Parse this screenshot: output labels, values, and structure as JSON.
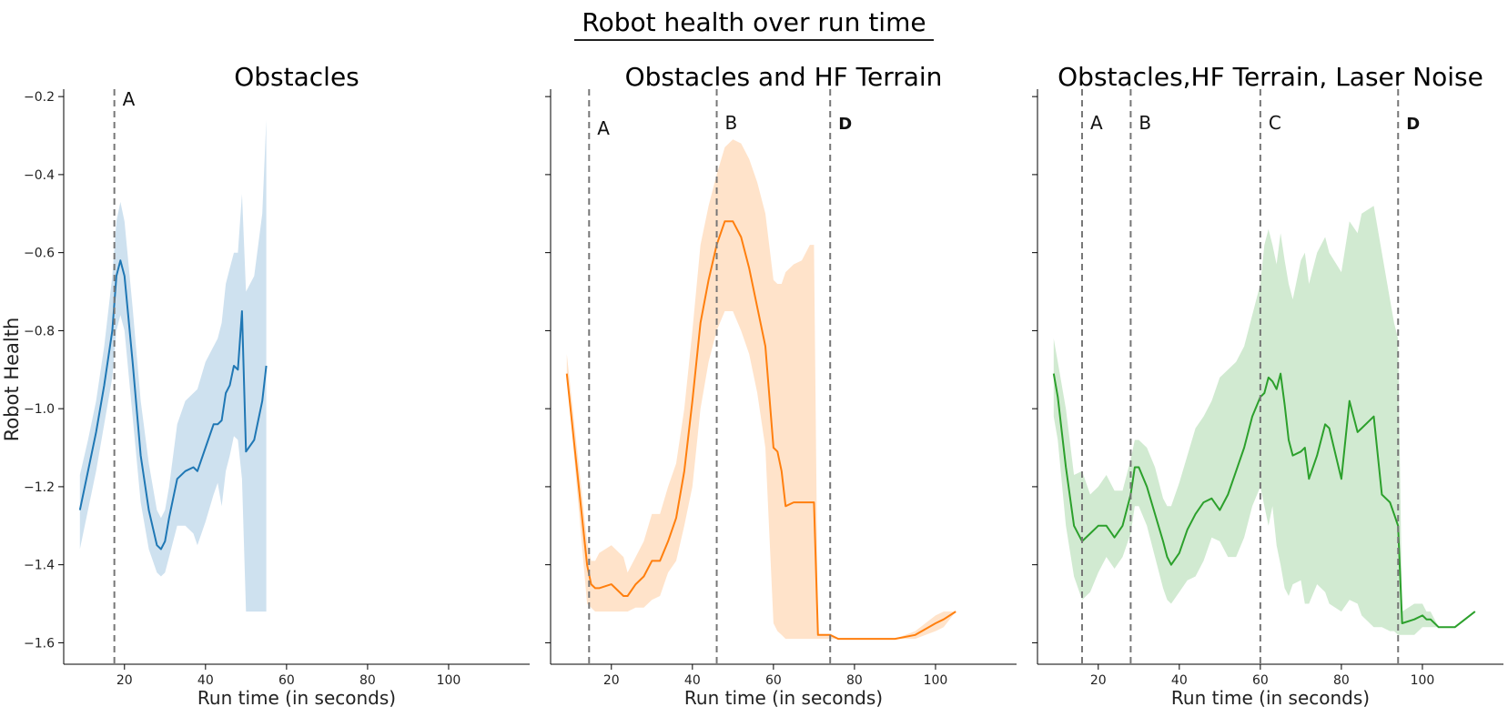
{
  "figure_title": "Robot health over run time",
  "colors": {
    "blue": "#1f77b4",
    "orange": "#ff7f0e",
    "green": "#2ca02c",
    "vline": "#777777"
  },
  "chart_data": [
    {
      "type": "line",
      "title": "Obstacles",
      "xlabel": "Run time (in seconds)",
      "ylabel": "Robot Health",
      "xlim": [
        5,
        120
      ],
      "ylim": [
        -1.655,
        -0.195
      ],
      "xticks": [
        20,
        40,
        60,
        80,
        100
      ],
      "yticks": [
        -1.6,
        -1.4,
        -1.2,
        -1.0,
        -0.8,
        -0.6,
        -0.4,
        -0.2
      ],
      "grid": false,
      "series": [
        {
          "color": "#1f77b4",
          "x": [
            9,
            11,
            13,
            15,
            17,
            18,
            19,
            20,
            22,
            24,
            26,
            28,
            29,
            30,
            31,
            33,
            35,
            37,
            38,
            40,
            42,
            43,
            44,
            45,
            46,
            47,
            48,
            49,
            50,
            52,
            54,
            55
          ],
          "y": [
            -1.26,
            -1.16,
            -1.06,
            -0.94,
            -0.8,
            -0.66,
            -0.62,
            -0.66,
            -0.88,
            -1.12,
            -1.26,
            -1.35,
            -1.36,
            -1.34,
            -1.28,
            -1.18,
            -1.16,
            -1.15,
            -1.16,
            -1.1,
            -1.04,
            -1.04,
            -1.03,
            -0.96,
            -0.94,
            -0.89,
            -0.9,
            -0.75,
            -1.11,
            -1.08,
            -0.98,
            -0.89
          ],
          "lower": [
            -1.36,
            -1.26,
            -1.16,
            -1.04,
            -0.92,
            -0.8,
            -0.76,
            -0.8,
            -1.02,
            -1.24,
            -1.36,
            -1.42,
            -1.43,
            -1.42,
            -1.38,
            -1.3,
            -1.3,
            -1.32,
            -1.35,
            -1.29,
            -1.22,
            -1.19,
            -1.25,
            -1.16,
            -1.12,
            -1.07,
            -1.08,
            -1.18,
            -1.52,
            -1.52,
            -1.52,
            -1.52
          ],
          "upper": [
            -1.17,
            -1.08,
            -0.98,
            -0.84,
            -0.66,
            -0.52,
            -0.47,
            -0.52,
            -0.74,
            -0.98,
            -1.14,
            -1.26,
            -1.28,
            -1.26,
            -1.2,
            -1.04,
            -0.98,
            -0.96,
            -0.95,
            -0.88,
            -0.84,
            -0.82,
            -0.78,
            -0.68,
            -0.64,
            -0.6,
            -0.6,
            -0.45,
            -0.7,
            -0.66,
            -0.5,
            -0.26
          ]
        }
      ],
      "vlines": [
        {
          "x": 17.5,
          "label": "A"
        }
      ]
    },
    {
      "type": "line",
      "title": "Obstacles and HF Terrain",
      "xlabel": "Run time (in seconds)",
      "xlim": [
        5,
        120
      ],
      "ylim": [
        -1.655,
        -0.195
      ],
      "xticks": [
        20,
        40,
        60,
        80,
        100
      ],
      "yticks": [
        -1.6,
        -1.4,
        -1.2,
        -1.0,
        -0.8,
        -0.6,
        -0.4,
        -0.2
      ],
      "grid": false,
      "series": [
        {
          "color": "#ff7f0e",
          "x": [
            9,
            14,
            15,
            16,
            17,
            20,
            23,
            24,
            26,
            28,
            30,
            32,
            34,
            36,
            38,
            40,
            42,
            44,
            46,
            48,
            50,
            52,
            54,
            56,
            58,
            60,
            61,
            62,
            63,
            65,
            67,
            69,
            70,
            71,
            74,
            76,
            80,
            90,
            95,
            100,
            102,
            105
          ],
          "y": [
            -0.91,
            -1.4,
            -1.45,
            -1.46,
            -1.46,
            -1.45,
            -1.48,
            -1.48,
            -1.45,
            -1.43,
            -1.39,
            -1.39,
            -1.34,
            -1.28,
            -1.16,
            -0.98,
            -0.78,
            -0.67,
            -0.58,
            -0.52,
            -0.52,
            -0.56,
            -0.64,
            -0.74,
            -0.84,
            -1.1,
            -1.11,
            -1.16,
            -1.25,
            -1.24,
            -1.24,
            -1.24,
            -1.24,
            -1.58,
            -1.58,
            -1.59,
            -1.59,
            -1.59,
            -1.58,
            -1.55,
            -1.54,
            -1.52
          ],
          "lower": [
            -0.91,
            -1.5,
            -1.51,
            -1.52,
            -1.52,
            -1.52,
            -1.52,
            -1.52,
            -1.51,
            -1.51,
            -1.49,
            -1.48,
            -1.42,
            -1.39,
            -1.3,
            -1.2,
            -1.0,
            -0.88,
            -0.8,
            -0.75,
            -0.75,
            -0.8,
            -0.86,
            -0.96,
            -1.1,
            -1.55,
            -1.57,
            -1.58,
            -1.59,
            -1.59,
            -1.59,
            -1.59,
            -1.59,
            -1.59,
            -1.59,
            -1.59,
            -1.59,
            -1.59,
            -1.59,
            -1.57,
            -1.56,
            -1.52
          ],
          "upper": [
            -0.86,
            -1.34,
            -1.39,
            -1.39,
            -1.37,
            -1.35,
            -1.38,
            -1.42,
            -1.38,
            -1.34,
            -1.27,
            -1.27,
            -1.2,
            -1.14,
            -1.0,
            -0.8,
            -0.58,
            -0.48,
            -0.4,
            -0.33,
            -0.31,
            -0.32,
            -0.36,
            -0.42,
            -0.5,
            -0.67,
            -0.68,
            -0.68,
            -0.65,
            -0.63,
            -0.62,
            -0.58,
            -0.58,
            -1.58,
            -1.58,
            -1.59,
            -1.59,
            -1.59,
            -1.57,
            -1.53,
            -1.52,
            -1.52
          ]
        }
      ],
      "vlines": [
        {
          "x": 14.5,
          "label": "A"
        },
        {
          "x": 46,
          "label": "B"
        },
        {
          "x": 74,
          "label": "D"
        }
      ]
    },
    {
      "type": "line",
      "title": "Obstacles,HF Terrain, Laser Noise",
      "xlabel": "Run time (in seconds)",
      "xlim": [
        5,
        120
      ],
      "ylim": [
        -1.655,
        -0.195
      ],
      "xticks": [
        20,
        40,
        60,
        80,
        100
      ],
      "yticks": [
        -1.6,
        -1.4,
        -1.2,
        -1.0,
        -0.8,
        -0.6,
        -0.4,
        -0.2
      ],
      "grid": false,
      "series": [
        {
          "color": "#2ca02c",
          "x": [
            9,
            10,
            12,
            14,
            16,
            18,
            20,
            22,
            24,
            26,
            28,
            29,
            30,
            32,
            34,
            36,
            37,
            38,
            40,
            42,
            44,
            46,
            48,
            50,
            52,
            54,
            56,
            58,
            60,
            61,
            62,
            63,
            64,
            65,
            66,
            67,
            68,
            70,
            71,
            72,
            74,
            76,
            77,
            80,
            82,
            84,
            85,
            88,
            90,
            92,
            93,
            94,
            95,
            98,
            100,
            101,
            102,
            104,
            108,
            113
          ],
          "y": [
            -0.91,
            -0.97,
            -1.15,
            -1.3,
            -1.34,
            -1.32,
            -1.3,
            -1.3,
            -1.33,
            -1.3,
            -1.22,
            -1.15,
            -1.15,
            -1.2,
            -1.27,
            -1.34,
            -1.38,
            -1.4,
            -1.37,
            -1.31,
            -1.27,
            -1.24,
            -1.23,
            -1.26,
            -1.22,
            -1.16,
            -1.1,
            -1.02,
            -0.97,
            -0.96,
            -0.92,
            -0.93,
            -0.95,
            -0.91,
            -0.99,
            -1.08,
            -1.12,
            -1.11,
            -1.1,
            -1.18,
            -1.12,
            -1.04,
            -1.05,
            -1.18,
            -0.98,
            -1.06,
            -1.05,
            -1.02,
            -1.22,
            -1.24,
            -1.27,
            -1.3,
            -1.55,
            -1.54,
            -1.53,
            -1.54,
            -1.54,
            -1.56,
            -1.56,
            -1.52
          ],
          "lower": [
            -1.02,
            -1.08,
            -1.3,
            -1.43,
            -1.49,
            -1.47,
            -1.42,
            -1.38,
            -1.41,
            -1.38,
            -1.32,
            -1.25,
            -1.25,
            -1.3,
            -1.38,
            -1.46,
            -1.49,
            -1.5,
            -1.47,
            -1.44,
            -1.43,
            -1.39,
            -1.33,
            -1.34,
            -1.38,
            -1.38,
            -1.33,
            -1.25,
            -1.2,
            -1.25,
            -1.3,
            -1.25,
            -1.35,
            -1.4,
            -1.46,
            -1.48,
            -1.45,
            -1.44,
            -1.5,
            -1.5,
            -1.45,
            -1.47,
            -1.5,
            -1.52,
            -1.49,
            -1.5,
            -1.53,
            -1.56,
            -1.56,
            -1.57,
            -1.57,
            -1.58,
            -1.58,
            -1.58,
            -1.56,
            -1.56,
            -1.56,
            -1.56,
            -1.56,
            -1.52
          ],
          "upper": [
            -0.82,
            -0.88,
            -1.0,
            -1.17,
            -1.16,
            -1.22,
            -1.2,
            -1.17,
            -1.21,
            -1.21,
            -1.13,
            -1.08,
            -1.08,
            -1.1,
            -1.15,
            -1.23,
            -1.25,
            -1.25,
            -1.19,
            -1.12,
            -1.05,
            -1.02,
            -0.98,
            -0.92,
            -0.9,
            -0.88,
            -0.84,
            -0.76,
            -0.68,
            -0.58,
            -0.54,
            -0.58,
            -0.63,
            -0.55,
            -0.62,
            -0.68,
            -0.72,
            -0.62,
            -0.6,
            -0.68,
            -0.6,
            -0.56,
            -0.6,
            -0.65,
            -0.52,
            -0.55,
            -0.5,
            -0.48,
            -0.6,
            -0.72,
            -0.78,
            -0.82,
            -1.52,
            -1.5,
            -1.5,
            -1.52,
            -1.52,
            -1.56,
            -1.56,
            -1.52
          ]
        }
      ],
      "vlines": [
        {
          "x": 16,
          "label": "A"
        },
        {
          "x": 28,
          "label": "B"
        },
        {
          "x": 60,
          "label": "C"
        },
        {
          "x": 94,
          "label": "D"
        }
      ]
    }
  ]
}
